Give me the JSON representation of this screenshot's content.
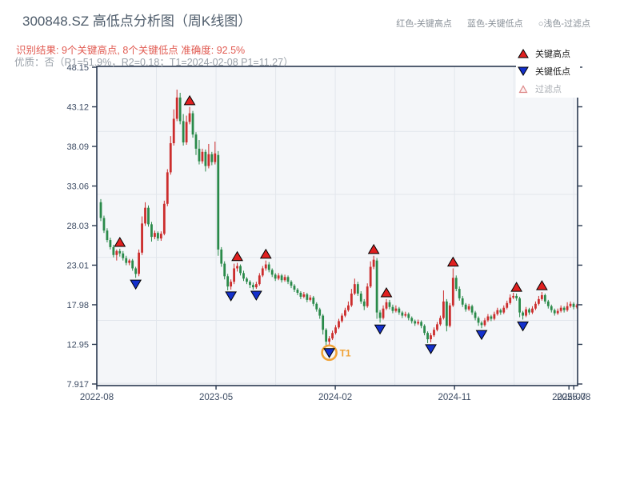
{
  "header": {
    "title": "300848.SZ 高低点分析图（周K线图）",
    "top_legend": {
      "high": "红色-关键高点",
      "low": "蓝色-关键低点",
      "filter": "○浅色-过滤点"
    },
    "subtitle_result": "识别结果: 9个关键高点, 8个关键低点  准确度: 92.5%",
    "subtitle_quality": "优质：否（R1=51.9%，R2=0.18；T1=2024-02-08 P1=11.27）"
  },
  "legend_box": {
    "key_high_label": "关键高点",
    "key_low_label": "关键低点",
    "filter_label": "过滤点"
  },
  "colors": {
    "candle_up": "#cc2d2d",
    "candle_down": "#2a8a4a",
    "key_high_fill": "#e02020",
    "key_low_fill": "#1330cc",
    "marker_edge": "#000000",
    "t1_orange": "#f0a236",
    "frame": "#2a3950",
    "grid": "#e2e6ec",
    "plot_bg": "#f4f6f9",
    "axis_label": "#3c4b63",
    "filter_edge": "#dd8888",
    "filter_fill": "#fdf0f0"
  },
  "chart_data": {
    "type": "candlestick",
    "title": "300848.SZ 高低点分析图（周K线图）",
    "y_tick_labels": [
      "48.15",
      "43.12",
      "38.09",
      "33.06",
      "28.03",
      "23.01",
      "17.98",
      "12.95",
      "7.917"
    ],
    "y_tick_values": [
      48.15,
      43.12,
      38.09,
      33.06,
      28.03,
      23.01,
      17.98,
      12.95,
      7.917
    ],
    "ylim": [
      7.917,
      48.15
    ],
    "x_ticks": [
      {
        "label": "2022-08",
        "pos": 0.0
      },
      {
        "label": "2023-05",
        "pos": 0.248
      },
      {
        "label": "2024-02",
        "pos": 0.496
      },
      {
        "label": "2024-11",
        "pos": 0.744
      },
      {
        "label": "2025-07",
        "pos": 0.982
      },
      {
        "label": "2025-08",
        "pos": 0.992
      }
    ],
    "grid_y_values": [
      40,
      32,
      24,
      16,
      8
    ],
    "grid_x_pos": [
      0,
      0.124,
      0.248,
      0.372,
      0.496,
      0.62,
      0.744,
      0.868,
      0.992
    ],
    "candles": [
      [
        31.0,
        31.4,
        28.6,
        29.0
      ],
      [
        29.0,
        29.3,
        27.1,
        27.4
      ],
      [
        27.4,
        27.7,
        25.9,
        26.2
      ],
      [
        26.2,
        26.5,
        25.0,
        25.3
      ],
      [
        25.3,
        25.6,
        24.0,
        24.3
      ],
      [
        24.3,
        25.0,
        23.6,
        24.8
      ],
      [
        24.8,
        25.1,
        24.1,
        24.5
      ],
      [
        24.5,
        24.8,
        23.6,
        23.9
      ],
      [
        23.9,
        24.2,
        23.0,
        23.3
      ],
      [
        23.3,
        23.8,
        23.0,
        23.6
      ],
      [
        23.6,
        23.8,
        22.3,
        22.6
      ],
      [
        22.6,
        22.8,
        21.4,
        21.9
      ],
      [
        21.9,
        25.0,
        21.6,
        24.6
      ],
      [
        24.6,
        29.2,
        24.3,
        28.3
      ],
      [
        28.3,
        31.0,
        28.0,
        30.3
      ],
      [
        30.3,
        30.6,
        27.9,
        28.2
      ],
      [
        28.2,
        28.5,
        26.0,
        26.6
      ],
      [
        26.6,
        27.4,
        26.3,
        27.1
      ],
      [
        27.1,
        27.3,
        26.1,
        26.4
      ],
      [
        26.4,
        27.3,
        26.1,
        27.0
      ],
      [
        27.0,
        31.2,
        26.8,
        30.8
      ],
      [
        30.8,
        35.2,
        30.5,
        34.8
      ],
      [
        34.8,
        39.4,
        34.5,
        38.5
      ],
      [
        38.5,
        42.8,
        38.2,
        41.6
      ],
      [
        41.6,
        45.3,
        41.3,
        44.3
      ],
      [
        44.3,
        44.9,
        40.9,
        41.3
      ],
      [
        41.3,
        42.2,
        38.2,
        38.6
      ],
      [
        38.6,
        42.0,
        38.3,
        41.2
      ],
      [
        41.2,
        43.1,
        40.9,
        42.3
      ],
      [
        42.3,
        42.6,
        39.2,
        39.6
      ],
      [
        39.6,
        39.9,
        37.0,
        37.8
      ],
      [
        37.8,
        38.9,
        35.8,
        36.2
      ],
      [
        36.2,
        37.8,
        35.9,
        37.4
      ],
      [
        37.4,
        37.7,
        34.9,
        35.6
      ],
      [
        35.6,
        38.4,
        35.3,
        37.1
      ],
      [
        37.1,
        37.4,
        35.7,
        36.1
      ],
      [
        36.1,
        38.7,
        35.8,
        37.2
      ],
      [
        37.0,
        37.5,
        24.2,
        25.0
      ],
      [
        25.0,
        25.3,
        22.8,
        23.2
      ],
      [
        23.2,
        23.5,
        21.2,
        21.6
      ],
      [
        21.6,
        21.9,
        19.8,
        20.3
      ],
      [
        20.3,
        21.2,
        19.9,
        20.9
      ],
      [
        20.9,
        23.2,
        20.6,
        22.6
      ],
      [
        22.6,
        23.3,
        22.2,
        22.9
      ],
      [
        22.9,
        23.1,
        21.7,
        22.0
      ],
      [
        22.0,
        22.3,
        21.0,
        21.3
      ],
      [
        21.3,
        21.5,
        20.6,
        20.9
      ],
      [
        20.9,
        21.1,
        20.1,
        20.5
      ],
      [
        20.5,
        20.8,
        19.9,
        20.2
      ],
      [
        20.2,
        20.9,
        20.0,
        20.6
      ],
      [
        20.6,
        22.0,
        20.4,
        21.7
      ],
      [
        21.7,
        22.9,
        21.5,
        22.6
      ],
      [
        22.6,
        23.6,
        22.3,
        23.1
      ],
      [
        23.1,
        23.4,
        22.1,
        22.4
      ],
      [
        22.4,
        22.6,
        21.5,
        21.8
      ],
      [
        21.8,
        22.0,
        21.0,
        21.3
      ],
      [
        21.3,
        22.0,
        21.1,
        21.7
      ],
      [
        21.7,
        21.9,
        20.8,
        21.1
      ],
      [
        21.1,
        21.8,
        20.9,
        21.5
      ],
      [
        21.5,
        21.7,
        20.6,
        20.9
      ],
      [
        20.9,
        21.1,
        20.1,
        20.4
      ],
      [
        20.4,
        20.6,
        19.6,
        19.9
      ],
      [
        19.9,
        20.1,
        19.2,
        19.5
      ],
      [
        19.5,
        19.7,
        18.7,
        19.0
      ],
      [
        19.0,
        19.6,
        18.8,
        19.3
      ],
      [
        19.3,
        19.5,
        18.3,
        18.6
      ],
      [
        18.6,
        19.2,
        18.4,
        18.9
      ],
      [
        18.9,
        19.1,
        17.8,
        18.1
      ],
      [
        18.1,
        18.3,
        17.1,
        17.4
      ],
      [
        17.4,
        17.6,
        16.2,
        16.6
      ],
      [
        16.6,
        16.8,
        14.2,
        14.8
      ],
      [
        14.8,
        15.0,
        12.8,
        13.3
      ],
      [
        13.3,
        14.0,
        12.9,
        13.7
      ],
      [
        13.7,
        14.7,
        13.5,
        14.4
      ],
      [
        14.4,
        15.4,
        14.2,
        15.1
      ],
      [
        15.1,
        16.2,
        14.9,
        15.9
      ],
      [
        15.9,
        16.9,
        15.7,
        16.6
      ],
      [
        16.6,
        17.6,
        16.4,
        17.3
      ],
      [
        17.3,
        18.4,
        17.1,
        17.9
      ],
      [
        17.9,
        20.0,
        17.7,
        19.4
      ],
      [
        19.4,
        21.3,
        19.2,
        20.6
      ],
      [
        20.6,
        20.9,
        19.1,
        19.4
      ],
      [
        19.4,
        19.7,
        18.1,
        18.4
      ],
      [
        18.4,
        18.7,
        17.3,
        17.8
      ],
      [
        17.8,
        20.7,
        17.6,
        20.3
      ],
      [
        20.3,
        23.5,
        20.1,
        22.8
      ],
      [
        22.8,
        24.2,
        22.5,
        23.7
      ],
      [
        23.6,
        23.9,
        16.2,
        17.0
      ],
      [
        17.0,
        17.3,
        15.7,
        16.3
      ],
      [
        16.3,
        17.9,
        16.1,
        17.5
      ],
      [
        17.5,
        18.7,
        17.3,
        18.3
      ],
      [
        18.3,
        18.6,
        17.4,
        17.7
      ],
      [
        17.7,
        18.0,
        16.9,
        17.2
      ],
      [
        17.2,
        17.9,
        17.0,
        17.5
      ],
      [
        17.5,
        17.7,
        16.7,
        17.0
      ],
      [
        17.0,
        17.2,
        16.3,
        16.6
      ],
      [
        16.6,
        17.1,
        16.4,
        16.8
      ],
      [
        16.8,
        17.0,
        16.0,
        16.3
      ],
      [
        16.3,
        16.5,
        15.6,
        15.9
      ],
      [
        15.9,
        16.1,
        15.3,
        15.6
      ],
      [
        15.6,
        16.1,
        15.4,
        15.8
      ],
      [
        15.8,
        16.0,
        15.0,
        15.3
      ],
      [
        15.3,
        15.5,
        14.1,
        14.4
      ],
      [
        14.4,
        14.6,
        13.1,
        13.6
      ],
      [
        13.6,
        14.4,
        13.2,
        14.1
      ],
      [
        14.1,
        15.1,
        13.9,
        14.8
      ],
      [
        14.8,
        15.8,
        14.6,
        15.5
      ],
      [
        15.5,
        16.6,
        15.3,
        16.3
      ],
      [
        16.3,
        19.8,
        16.1,
        18.4
      ],
      [
        18.4,
        18.7,
        14.6,
        15.3
      ],
      [
        15.3,
        18.2,
        15.1,
        17.9
      ],
      [
        17.9,
        22.6,
        17.7,
        21.4
      ],
      [
        21.4,
        21.7,
        19.7,
        20.0
      ],
      [
        20.0,
        20.3,
        18.5,
        18.8
      ],
      [
        18.8,
        19.1,
        17.7,
        18.0
      ],
      [
        18.0,
        18.2,
        17.1,
        17.4
      ],
      [
        17.4,
        18.1,
        17.2,
        17.8
      ],
      [
        17.8,
        18.0,
        16.7,
        17.0
      ],
      [
        17.0,
        17.2,
        16.0,
        16.3
      ],
      [
        16.3,
        16.5,
        15.3,
        15.7
      ],
      [
        15.7,
        15.9,
        15.0,
        15.4
      ],
      [
        15.4,
        16.3,
        15.2,
        16.0
      ],
      [
        16.0,
        16.8,
        15.8,
        16.5
      ],
      [
        16.5,
        16.7,
        15.9,
        16.2
      ],
      [
        16.2,
        17.1,
        16.0,
        16.8
      ],
      [
        16.8,
        17.6,
        16.6,
        17.3
      ],
      [
        17.3,
        17.5,
        16.7,
        17.0
      ],
      [
        17.0,
        17.9,
        16.8,
        17.6
      ],
      [
        17.6,
        18.5,
        17.4,
        18.2
      ],
      [
        18.2,
        19.3,
        18.0,
        18.9
      ],
      [
        18.9,
        19.5,
        18.7,
        19.1
      ],
      [
        19.1,
        19.4,
        18.5,
        18.8
      ],
      [
        18.8,
        19.0,
        16.4,
        17.0
      ],
      [
        17.0,
        17.2,
        16.1,
        16.6
      ],
      [
        16.6,
        17.7,
        16.4,
        17.4
      ],
      [
        17.4,
        17.6,
        16.7,
        17.0
      ],
      [
        17.0,
        17.8,
        16.8,
        17.5
      ],
      [
        17.5,
        18.4,
        17.3,
        18.1
      ],
      [
        18.1,
        19.1,
        17.9,
        18.7
      ],
      [
        18.7,
        19.6,
        18.5,
        19.2
      ],
      [
        19.2,
        19.4,
        18.1,
        18.4
      ],
      [
        18.4,
        18.6,
        17.5,
        17.8
      ],
      [
        17.8,
        18.0,
        17.0,
        17.3
      ],
      [
        17.3,
        17.5,
        16.6,
        16.9
      ],
      [
        16.9,
        17.5,
        16.7,
        17.2
      ],
      [
        17.2,
        17.9,
        17.0,
        17.6
      ],
      [
        17.6,
        17.8,
        17.0,
        17.3
      ],
      [
        17.3,
        18.3,
        17.1,
        17.8
      ],
      [
        17.8,
        18.4,
        17.6,
        18.1
      ],
      [
        18.1,
        18.3,
        17.4,
        17.7
      ],
      [
        17.7,
        18.1,
        17.5,
        17.9
      ]
    ],
    "key_highs": [
      {
        "i": 6,
        "v": 25.9
      },
      {
        "i": 28,
        "v": 43.9
      },
      {
        "i": 43,
        "v": 24.1
      },
      {
        "i": 52,
        "v": 24.4
      },
      {
        "i": 86,
        "v": 25.0
      },
      {
        "i": 90,
        "v": 19.5
      },
      {
        "i": 111,
        "v": 23.4
      },
      {
        "i": 131,
        "v": 20.2
      },
      {
        "i": 139,
        "v": 20.4
      }
    ],
    "key_lows": [
      {
        "i": 11,
        "v": 20.6
      },
      {
        "i": 41,
        "v": 19.1
      },
      {
        "i": 49,
        "v": 19.2
      },
      {
        "i": 72,
        "v": 11.9,
        "t1": true
      },
      {
        "i": 88,
        "v": 14.9
      },
      {
        "i": 104,
        "v": 12.4
      },
      {
        "i": 120,
        "v": 14.2
      },
      {
        "i": 133,
        "v": 15.3
      }
    ],
    "t1_label": "T1",
    "legend": [
      "关键高点",
      "关键低点",
      "过滤点"
    ],
    "legend_position": "top-right",
    "grid": true
  }
}
